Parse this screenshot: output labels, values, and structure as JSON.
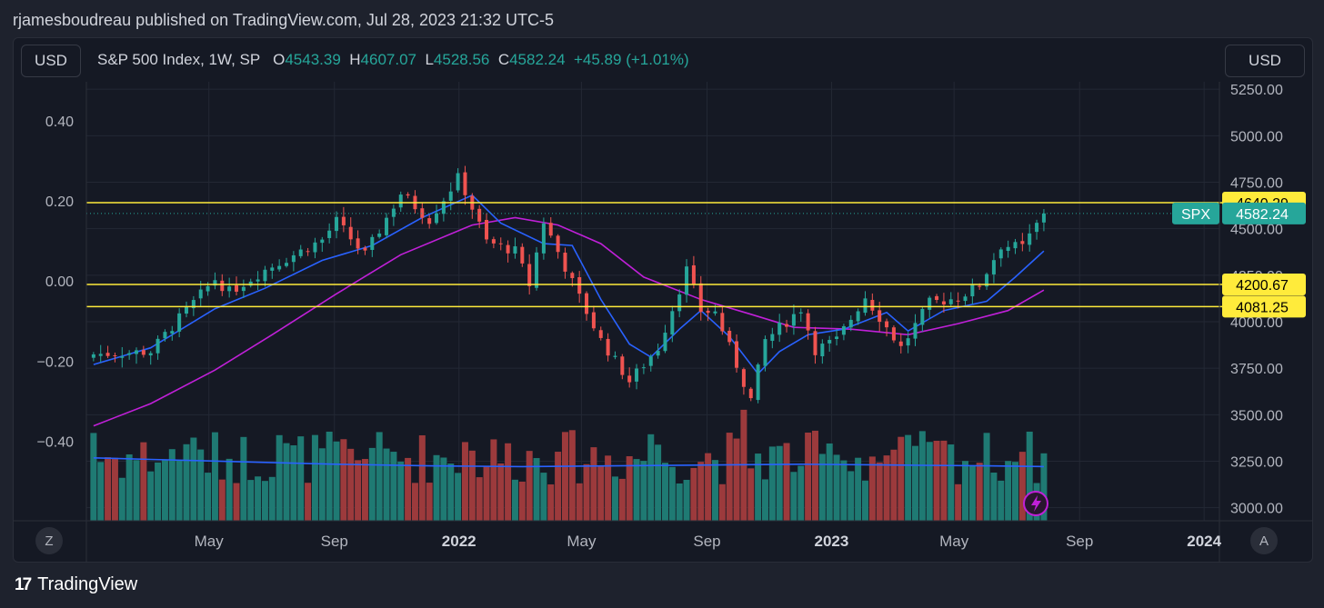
{
  "header": {
    "published_text": "rjamesboudreau published on TradingView.com, Jul 28, 2023 21:32 UTC-5"
  },
  "toolbar": {
    "left_currency": "USD",
    "right_currency": "USD"
  },
  "legend": {
    "symbol": "S&P 500 Index, 1W, SP",
    "o_label": "O",
    "o_value": "4543.39",
    "h_label": "H",
    "h_value": "4607.07",
    "l_label": "L",
    "l_value": "4528.56",
    "c_label": "C",
    "c_value": "4582.24",
    "change": "+45.89 (+1.01%)"
  },
  "corners": {
    "left": "Z",
    "right": "A"
  },
  "footer": {
    "brand": "TradingView"
  },
  "colors": {
    "up": "#26a69a",
    "down": "#ef5350",
    "ma_fast": "#2962ff",
    "ma_slow": "#c020d8",
    "level": "#ffeb3b",
    "vol_up": "#1f7a73",
    "vol_down": "#9c3a3c"
  },
  "chart_data": {
    "type": "candlestick",
    "timeframe": "1W",
    "x_tick_labels": [
      "May",
      "Sep",
      "2022",
      "May",
      "Sep",
      "2023",
      "May",
      "Sep",
      "2024"
    ],
    "x_tick_dates": [
      "2021-05-01",
      "2021-09-01",
      "2022-01-01",
      "2022-05-01",
      "2022-09-01",
      "2023-01-01",
      "2023-05-01",
      "2023-09-01",
      "2024-01-01"
    ],
    "x_range": [
      "2021-01-01",
      "2024-01-16"
    ],
    "y_right": {
      "ticks": [
        3000,
        3250,
        3500,
        3750,
        4000,
        4250,
        4500,
        4750,
        5000,
        5250
      ],
      "tick_labels": [
        "3000.00",
        "3250.00",
        "3500.00",
        "3750.00",
        "4000.00",
        "4250.00",
        "4500.00",
        "4750.00",
        "5000.00",
        "5250.00"
      ],
      "range": [
        2930,
        5290
      ]
    },
    "y_left": {
      "ticks": [
        0.4,
        0.2,
        0.0,
        -0.2,
        -0.4
      ],
      "tick_labels": [
        "0.40",
        "0.20",
        "0.00",
        "−0.20",
        "−0.40"
      ],
      "range": [
        -0.598,
        0.497
      ]
    },
    "horizontal_levels": [
      {
        "label": "4640.29",
        "value": 4640.29
      },
      {
        "label": "4200.67",
        "value": 4200.67
      },
      {
        "label": "4081.25",
        "value": 4081.25
      }
    ],
    "last_price": {
      "symbol": "SPX",
      "label": "4582.24",
      "value": 4582.24
    },
    "close_path": [
      [
        "2021-01-08",
        3825
      ],
      [
        "2021-03-05",
        3840
      ],
      [
        "2021-03-26",
        3975
      ],
      [
        "2021-05-07",
        4230
      ],
      [
        "2021-05-21",
        4160
      ],
      [
        "2021-06-25",
        4280
      ],
      [
        "2021-08-20",
        4440
      ],
      [
        "2021-09-03",
        4540
      ],
      [
        "2021-09-24",
        4400
      ],
      [
        "2021-10-01",
        4360
      ],
      [
        "2021-11-05",
        4690
      ],
      [
        "2021-12-03",
        4550
      ],
      [
        "2022-01-01",
        4780
      ],
      [
        "2022-01-28",
        4430
      ],
      [
        "2022-02-25",
        4380
      ],
      [
        "2022-03-11",
        4200
      ],
      [
        "2022-03-25",
        4540
      ],
      [
        "2022-04-29",
        4130
      ],
      [
        "2022-05-20",
        3900
      ],
      [
        "2022-06-17",
        3680
      ],
      [
        "2022-07-15",
        3860
      ],
      [
        "2022-08-12",
        4280
      ],
      [
        "2022-08-26",
        4060
      ],
      [
        "2022-09-09",
        4050
      ],
      [
        "2022-10-14",
        3580
      ],
      [
        "2022-10-28",
        3900
      ],
      [
        "2022-12-02",
        4070
      ],
      [
        "2022-12-16",
        3850
      ],
      [
        "2023-01-06",
        3900
      ],
      [
        "2023-02-03",
        4135
      ],
      [
        "2023-03-10",
        3860
      ],
      [
        "2023-04-07",
        4100
      ],
      [
        "2023-05-05",
        4130
      ],
      [
        "2023-05-26",
        4200
      ],
      [
        "2023-06-16",
        4410
      ],
      [
        "2023-07-07",
        4400
      ],
      [
        "2023-07-28",
        4582
      ]
    ],
    "ma_fast_path": [
      [
        "2021-01-08",
        3770
      ],
      [
        "2021-03-05",
        3860
      ],
      [
        "2021-05-07",
        4070
      ],
      [
        "2021-06-25",
        4180
      ],
      [
        "2021-08-20",
        4330
      ],
      [
        "2021-10-08",
        4410
      ],
      [
        "2021-11-26",
        4560
      ],
      [
        "2022-01-14",
        4680
      ],
      [
        "2022-02-11",
        4530
      ],
      [
        "2022-03-25",
        4420
      ],
      [
        "2022-04-22",
        4410
      ],
      [
        "2022-05-20",
        4120
      ],
      [
        "2022-06-17",
        3880
      ],
      [
        "2022-07-08",
        3810
      ],
      [
        "2022-08-05",
        3960
      ],
      [
        "2022-08-26",
        4060
      ],
      [
        "2022-09-23",
        3920
      ],
      [
        "2022-10-21",
        3720
      ],
      [
        "2022-11-11",
        3840
      ],
      [
        "2022-12-09",
        3930
      ],
      [
        "2023-01-13",
        3960
      ],
      [
        "2023-02-24",
        4050
      ],
      [
        "2023-03-17",
        3950
      ],
      [
        "2023-04-21",
        4060
      ],
      [
        "2023-06-02",
        4110
      ],
      [
        "2023-06-30",
        4240
      ],
      [
        "2023-07-28",
        4380
      ]
    ],
    "ma_slow_path": [
      [
        "2021-01-08",
        3440
      ],
      [
        "2021-03-05",
        3560
      ],
      [
        "2021-05-07",
        3740
      ],
      [
        "2021-07-02",
        3930
      ],
      [
        "2021-09-03",
        4150
      ],
      [
        "2021-11-05",
        4360
      ],
      [
        "2022-01-14",
        4520
      ],
      [
        "2022-02-25",
        4560
      ],
      [
        "2022-04-08",
        4520
      ],
      [
        "2022-05-20",
        4420
      ],
      [
        "2022-07-01",
        4240
      ],
      [
        "2022-08-26",
        4120
      ],
      [
        "2022-10-14",
        4040
      ],
      [
        "2022-11-25",
        3970
      ],
      [
        "2023-01-20",
        3960
      ],
      [
        "2023-03-17",
        3930
      ],
      [
        "2023-05-05",
        3990
      ],
      [
        "2023-06-23",
        4060
      ],
      [
        "2023-07-28",
        4170
      ]
    ],
    "volume_avg_path": [
      [
        "2021-01-08",
        0.79
      ],
      [
        "2021-03-05",
        0.77
      ],
      [
        "2021-06-04",
        0.74
      ],
      [
        "2021-09-03",
        0.71
      ],
      [
        "2021-12-03",
        0.69
      ],
      [
        "2022-03-04",
        0.68
      ],
      [
        "2022-06-03",
        0.69
      ],
      [
        "2022-09-02",
        0.7
      ],
      [
        "2022-12-02",
        0.71
      ],
      [
        "2023-03-03",
        0.7
      ],
      [
        "2023-06-02",
        0.69
      ],
      [
        "2023-07-28",
        0.68
      ]
    ]
  }
}
